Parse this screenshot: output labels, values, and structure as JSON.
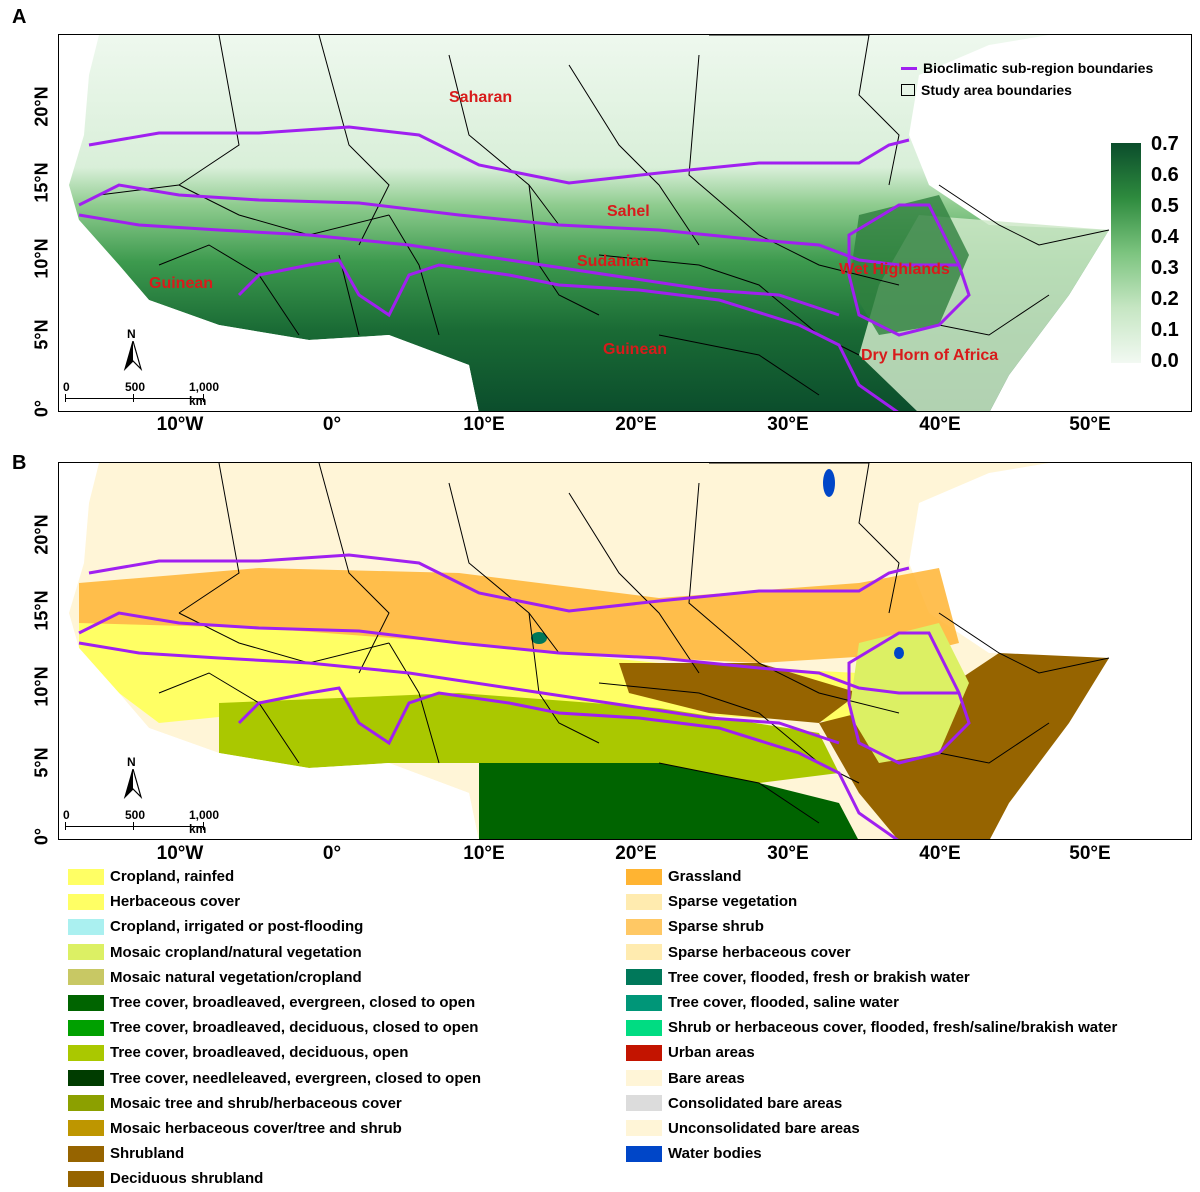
{
  "panels": {
    "a": {
      "letter": "A"
    },
    "b": {
      "letter": "B"
    }
  },
  "axes": {
    "lat_labels": [
      "20°N",
      "15°N",
      "10°N",
      "5°N",
      "0°"
    ],
    "lon_labels": [
      "10°W",
      "0°",
      "10°E",
      "20°E",
      "30°E",
      "40°E",
      "50°E"
    ]
  },
  "legend_boundaries": {
    "bioclimatic": "Bioclimatic sub-region boundaries",
    "study_area": "Study area boundaries",
    "bioclimatic_color": "#a020f0"
  },
  "colorbar": {
    "ticks": [
      "0.7",
      "0.6",
      "0.5",
      "0.4",
      "0.3",
      "0.2",
      "0.1",
      "0.0"
    ],
    "color_high": "#0b4d2c",
    "color_low": "#f2f9f2"
  },
  "region_labels": {
    "saharan": "Saharan",
    "sahel": "Sahel",
    "sudanian": "Sudanian",
    "guinean_west": "Guinean",
    "guinean_central": "Guinean",
    "wet_highlands": "Wet Highlands",
    "dry_horn": "Dry Horn of Africa",
    "label_color": "#d81b1b"
  },
  "scale_bar": {
    "north": "N",
    "t0": "0",
    "t500": "500",
    "t1000": "1,000 km"
  },
  "landcover_legend": {
    "left": [
      {
        "label": "Cropland, rainfed",
        "color": "#ffff64"
      },
      {
        "label": "Herbaceous cover",
        "color": "#ffff64"
      },
      {
        "label": "Cropland, irrigated or post-flooding",
        "color": "#aaf0f0"
      },
      {
        "label": "Mosaic cropland/natural vegetation",
        "color": "#dcf064"
      },
      {
        "label": "Mosaic natural vegetation/cropland",
        "color": "#c8c864"
      },
      {
        "label": "Tree cover, broadleaved, evergreen, closed to open",
        "color": "#006400"
      },
      {
        "label": "Tree cover, broadleaved, deciduous, closed to open",
        "color": "#00a000"
      },
      {
        "label": "Tree cover, broadleaved, deciduous, open",
        "color": "#aac800"
      },
      {
        "label": "Tree cover, needleleaved, evergreen, closed to open",
        "color": "#003c00"
      },
      {
        "label": "Mosaic tree and shrub/herbaceous cover",
        "color": "#8ca000"
      },
      {
        "label": "Mosaic herbaceous cover/tree and shrub",
        "color": "#be9600"
      },
      {
        "label": "Shrubland",
        "color": "#966400"
      },
      {
        "label": "Deciduous shrubland",
        "color": "#966400"
      }
    ],
    "right": [
      {
        "label": "Grassland",
        "color": "#ffb432"
      },
      {
        "label": "Sparse vegetation",
        "color": "#ffebaf"
      },
      {
        "label": "Sparse shrub",
        "color": "#ffc864"
      },
      {
        "label": "Sparse herbaceous cover",
        "color": "#ffebaf"
      },
      {
        "label": "Tree cover, flooded, fresh or brakish water",
        "color": "#00785a"
      },
      {
        "label": "Tree cover, flooded, saline water",
        "color": "#009678"
      },
      {
        "label": "Shrub or herbaceous cover, flooded, fresh/saline/brakish water",
        "color": "#00dc82"
      },
      {
        "label": "Urban areas",
        "color": "#c31400"
      },
      {
        "label": "Bare areas",
        "color": "#fff5d7"
      },
      {
        "label": "Consolidated bare areas",
        "color": "#dcdcdc"
      },
      {
        "label": "Unconsolidated bare areas",
        "color": "#fff5d7"
      },
      {
        "label": "Water bodies",
        "color": "#0046c8"
      }
    ]
  }
}
